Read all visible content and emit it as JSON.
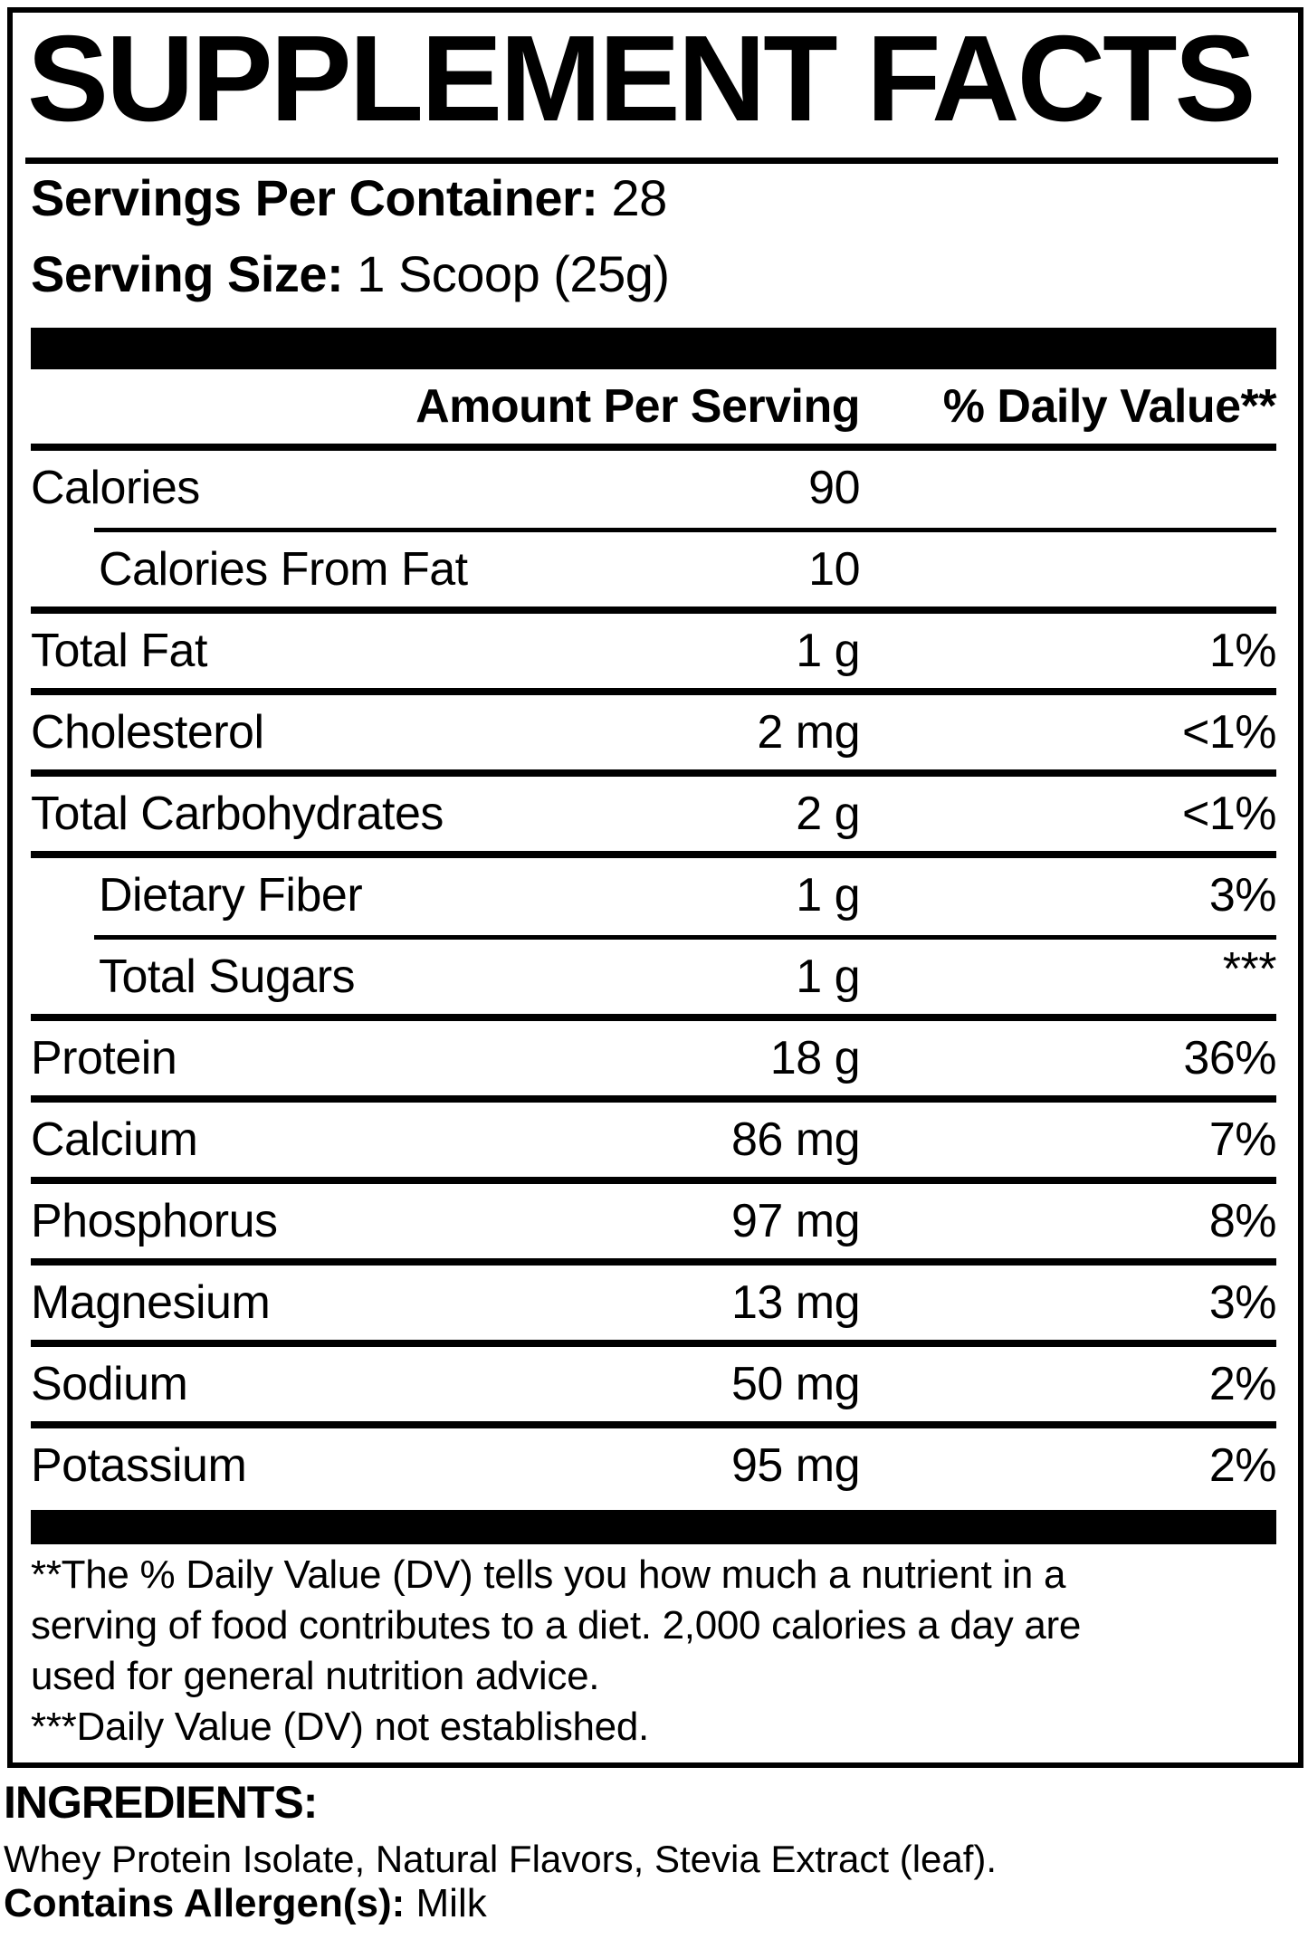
{
  "panel": {
    "title": "SUPPLEMENT FACTS",
    "servings_per_container_label": "Servings Per Container:",
    "servings_per_container_value": "28",
    "serving_size_label": "Serving Size:",
    "serving_size_value": "1 Scoop (25g)",
    "columns": {
      "amount": "Amount Per Serving",
      "daily_value": "% Daily Value**"
    },
    "rows": [
      {
        "label": "Calories",
        "amount": "90",
        "dv": "",
        "indent": false,
        "divider": "indent",
        "dv_raised": false
      },
      {
        "label": "Calories From Fat",
        "amount": "10",
        "dv": "",
        "indent": true,
        "divider": "full",
        "dv_raised": false
      },
      {
        "label": "Total Fat",
        "amount": "1 g",
        "dv": "1%",
        "indent": false,
        "divider": "full",
        "dv_raised": false
      },
      {
        "label": "Cholesterol",
        "amount": "2 mg",
        "dv": "<1%",
        "indent": false,
        "divider": "full",
        "dv_raised": false
      },
      {
        "label": "Total Carbohydrates",
        "amount": "2 g",
        "dv": "<1%",
        "indent": false,
        "divider": "full",
        "dv_raised": false
      },
      {
        "label": "Dietary Fiber",
        "amount": "1 g",
        "dv": "3%",
        "indent": true,
        "divider": "indent",
        "dv_raised": false
      },
      {
        "label": "Total Sugars",
        "amount": "1 g",
        "dv": "***",
        "indent": true,
        "divider": "full",
        "dv_raised": true
      },
      {
        "label": "Protein",
        "amount": "18 g",
        "dv": "36%",
        "indent": false,
        "divider": "full",
        "dv_raised": false
      },
      {
        "label": "Calcium",
        "amount": "86 mg",
        "dv": "7%",
        "indent": false,
        "divider": "full",
        "dv_raised": false
      },
      {
        "label": "Phosphorus",
        "amount": "97 mg",
        "dv": "8%",
        "indent": false,
        "divider": "full",
        "dv_raised": false
      },
      {
        "label": "Magnesium",
        "amount": "13 mg",
        "dv": "3%",
        "indent": false,
        "divider": "full",
        "dv_raised": false
      },
      {
        "label": "Sodium",
        "amount": "50 mg",
        "dv": "2%",
        "indent": false,
        "divider": "full",
        "dv_raised": false
      },
      {
        "label": "Potassium",
        "amount": "95 mg",
        "dv": "2%",
        "indent": false,
        "divider": "none",
        "dv_raised": false
      }
    ],
    "footnotes": {
      "daily_value_note": "**The % Daily Value (DV) tells you how much a nutrient in a\nserving of food contributes to a diet. 2,000 calories a day are\nused for general nutrition advice.",
      "not_established_note": "***Daily Value (DV) not established."
    }
  },
  "ingredients": {
    "heading": "INGREDIENTS:",
    "list": "Whey Protein Isolate, Natural Flavors, Stevia Extract (leaf).",
    "allergen_label": "Contains Allergen(s):",
    "allergen_value": "Milk"
  },
  "colors": {
    "text": "#000000",
    "background": "#ffffff"
  }
}
